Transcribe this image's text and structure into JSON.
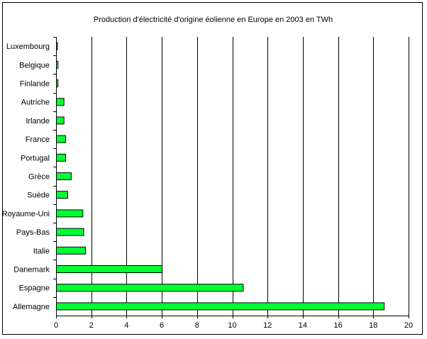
{
  "chart_data": {
    "type": "bar",
    "orientation": "horizontal",
    "title": "Production d'électricité d'origine éolienne en Europe en 2003 en TWh",
    "xlabel": "",
    "ylabel": "",
    "xlim": [
      0,
      20
    ],
    "x_ticks": [
      "0",
      "2",
      "4",
      "6",
      "8",
      "10",
      "12",
      "14",
      "16",
      "18",
      "20"
    ],
    "grid": "vertical",
    "legend": "none",
    "categories": [
      "Luxembourg",
      "Belgique",
      "Finlande",
      "Autriche",
      "Irlande",
      "France",
      "Portugal",
      "Grèce",
      "Suède",
      "Royaume-Uni",
      "Pays-Bas",
      "Italie",
      "Danemark",
      "Espagne",
      "Allemagne"
    ],
    "values": [
      0.02,
      0.09,
      0.09,
      0.43,
      0.43,
      0.52,
      0.52,
      0.84,
      0.64,
      1.5,
      1.55,
      1.65,
      6.0,
      10.6,
      18.6
    ],
    "colors": {
      "bar_fill": "#00ff33",
      "bar_stroke": "#000000",
      "grid": "#000000"
    }
  }
}
